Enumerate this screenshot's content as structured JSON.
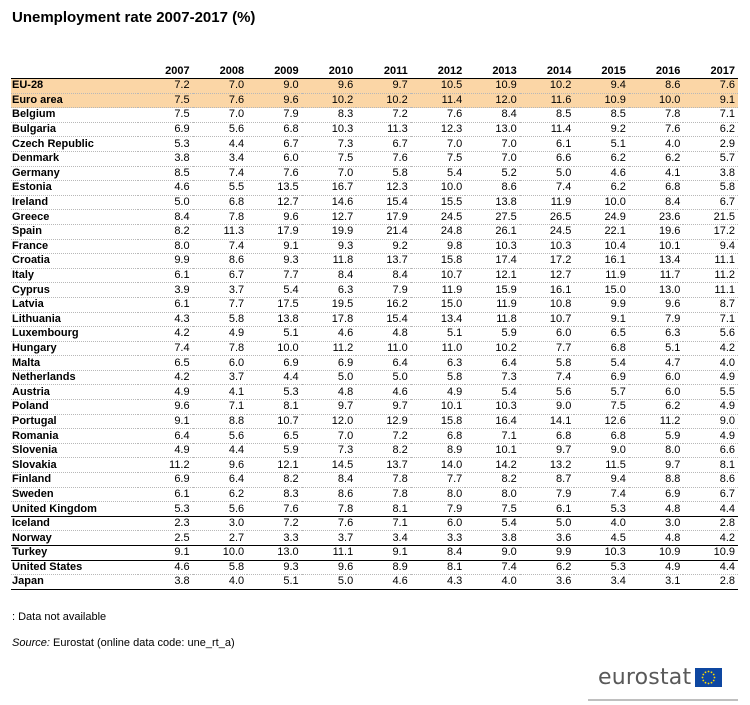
{
  "title": "Unemployment rate 2007-2017 (%)",
  "chart_data": {
    "type": "table",
    "title": "Unemployment rate 2007-2017 (%)",
    "columns": [
      "2007",
      "2008",
      "2009",
      "2010",
      "2011",
      "2012",
      "2013",
      "2014",
      "2015",
      "2016",
      "2017"
    ],
    "rows": [
      {
        "country": "EU-28",
        "values": [
          "7.2",
          "7.0",
          "9.0",
          "9.6",
          "9.7",
          "10.5",
          "10.9",
          "10.2",
          "9.4",
          "8.6",
          "7.6"
        ],
        "highlight": true
      },
      {
        "country": "Euro area",
        "values": [
          "7.5",
          "7.6",
          "9.6",
          "10.2",
          "10.2",
          "11.4",
          "12.0",
          "11.6",
          "10.9",
          "10.0",
          "9.1"
        ],
        "highlight": true
      },
      {
        "country": "Belgium",
        "values": [
          "7.5",
          "7.0",
          "7.9",
          "8.3",
          "7.2",
          "7.6",
          "8.4",
          "8.5",
          "8.5",
          "7.8",
          "7.1"
        ]
      },
      {
        "country": "Bulgaria",
        "values": [
          "6.9",
          "5.6",
          "6.8",
          "10.3",
          "11.3",
          "12.3",
          "13.0",
          "11.4",
          "9.2",
          "7.6",
          "6.2"
        ]
      },
      {
        "country": "Czech Republic",
        "values": [
          "5.3",
          "4.4",
          "6.7",
          "7.3",
          "6.7",
          "7.0",
          "7.0",
          "6.1",
          "5.1",
          "4.0",
          "2.9"
        ]
      },
      {
        "country": "Denmark",
        "values": [
          "3.8",
          "3.4",
          "6.0",
          "7.5",
          "7.6",
          "7.5",
          "7.0",
          "6.6",
          "6.2",
          "6.2",
          "5.7"
        ]
      },
      {
        "country": "Germany",
        "values": [
          "8.5",
          "7.4",
          "7.6",
          "7.0",
          "5.8",
          "5.4",
          "5.2",
          "5.0",
          "4.6",
          "4.1",
          "3.8"
        ]
      },
      {
        "country": "Estonia",
        "values": [
          "4.6",
          "5.5",
          "13.5",
          "16.7",
          "12.3",
          "10.0",
          "8.6",
          "7.4",
          "6.2",
          "6.8",
          "5.8"
        ]
      },
      {
        "country": "Ireland",
        "values": [
          "5.0",
          "6.8",
          "12.7",
          "14.6",
          "15.4",
          "15.5",
          "13.8",
          "11.9",
          "10.0",
          "8.4",
          "6.7"
        ]
      },
      {
        "country": "Greece",
        "values": [
          "8.4",
          "7.8",
          "9.6",
          "12.7",
          "17.9",
          "24.5",
          "27.5",
          "26.5",
          "24.9",
          "23.6",
          "21.5"
        ]
      },
      {
        "country": "Spain",
        "values": [
          "8.2",
          "11.3",
          "17.9",
          "19.9",
          "21.4",
          "24.8",
          "26.1",
          "24.5",
          "22.1",
          "19.6",
          "17.2"
        ]
      },
      {
        "country": "France",
        "values": [
          "8.0",
          "7.4",
          "9.1",
          "9.3",
          "9.2",
          "9.8",
          "10.3",
          "10.3",
          "10.4",
          "10.1",
          "9.4"
        ]
      },
      {
        "country": "Croatia",
        "values": [
          "9.9",
          "8.6",
          "9.3",
          "11.8",
          "13.7",
          "15.8",
          "17.4",
          "17.2",
          "16.1",
          "13.4",
          "11.1"
        ]
      },
      {
        "country": "Italy",
        "values": [
          "6.1",
          "6.7",
          "7.7",
          "8.4",
          "8.4",
          "10.7",
          "12.1",
          "12.7",
          "11.9",
          "11.7",
          "11.2"
        ]
      },
      {
        "country": "Cyprus",
        "values": [
          "3.9",
          "3.7",
          "5.4",
          "6.3",
          "7.9",
          "11.9",
          "15.9",
          "16.1",
          "15.0",
          "13.0",
          "11.1"
        ]
      },
      {
        "country": "Latvia",
        "values": [
          "6.1",
          "7.7",
          "17.5",
          "19.5",
          "16.2",
          "15.0",
          "11.9",
          "10.8",
          "9.9",
          "9.6",
          "8.7"
        ]
      },
      {
        "country": "Lithuania",
        "values": [
          "4.3",
          "5.8",
          "13.8",
          "17.8",
          "15.4",
          "13.4",
          "11.8",
          "10.7",
          "9.1",
          "7.9",
          "7.1"
        ]
      },
      {
        "country": "Luxembourg",
        "values": [
          "4.2",
          "4.9",
          "5.1",
          "4.6",
          "4.8",
          "5.1",
          "5.9",
          "6.0",
          "6.5",
          "6.3",
          "5.6"
        ]
      },
      {
        "country": "Hungary",
        "values": [
          "7.4",
          "7.8",
          "10.0",
          "11.2",
          "11.0",
          "11.0",
          "10.2",
          "7.7",
          "6.8",
          "5.1",
          "4.2"
        ]
      },
      {
        "country": "Malta",
        "values": [
          "6.5",
          "6.0",
          "6.9",
          "6.9",
          "6.4",
          "6.3",
          "6.4",
          "5.8",
          "5.4",
          "4.7",
          "4.0"
        ]
      },
      {
        "country": "Netherlands",
        "values": [
          "4.2",
          "3.7",
          "4.4",
          "5.0",
          "5.0",
          "5.8",
          "7.3",
          "7.4",
          "6.9",
          "6.0",
          "4.9"
        ]
      },
      {
        "country": "Austria",
        "values": [
          "4.9",
          "4.1",
          "5.3",
          "4.8",
          "4.6",
          "4.9",
          "5.4",
          "5.6",
          "5.7",
          "6.0",
          "5.5"
        ]
      },
      {
        "country": "Poland",
        "values": [
          "9.6",
          "7.1",
          "8.1",
          "9.7",
          "9.7",
          "10.1",
          "10.3",
          "9.0",
          "7.5",
          "6.2",
          "4.9"
        ]
      },
      {
        "country": "Portugal",
        "values": [
          "9.1",
          "8.8",
          "10.7",
          "12.0",
          "12.9",
          "15.8",
          "16.4",
          "14.1",
          "12.6",
          "11.2",
          "9.0"
        ]
      },
      {
        "country": "Romania",
        "values": [
          "6.4",
          "5.6",
          "6.5",
          "7.0",
          "7.2",
          "6.8",
          "7.1",
          "6.8",
          "6.8",
          "5.9",
          "4.9"
        ]
      },
      {
        "country": "Slovenia",
        "values": [
          "4.9",
          "4.4",
          "5.9",
          "7.3",
          "8.2",
          "8.9",
          "10.1",
          "9.7",
          "9.0",
          "8.0",
          "6.6"
        ]
      },
      {
        "country": "Slovakia",
        "values": [
          "11.2",
          "9.6",
          "12.1",
          "14.5",
          "13.7",
          "14.0",
          "14.2",
          "13.2",
          "11.5",
          "9.7",
          "8.1"
        ]
      },
      {
        "country": "Finland",
        "values": [
          "6.9",
          "6.4",
          "8.2",
          "8.4",
          "7.8",
          "7.7",
          "8.2",
          "8.7",
          "9.4",
          "8.8",
          "8.6"
        ]
      },
      {
        "country": "Sweden",
        "values": [
          "6.1",
          "6.2",
          "8.3",
          "8.6",
          "7.8",
          "8.0",
          "8.0",
          "7.9",
          "7.4",
          "6.9",
          "6.7"
        ]
      },
      {
        "country": "United Kingdom",
        "values": [
          "5.3",
          "5.6",
          "7.6",
          "7.8",
          "8.1",
          "7.9",
          "7.5",
          "6.1",
          "5.3",
          "4.8",
          "4.4"
        ],
        "separator": true
      },
      {
        "country": "Iceland",
        "values": [
          "2.3",
          "3.0",
          "7.2",
          "7.6",
          "7.1",
          "6.0",
          "5.4",
          "5.0",
          "4.0",
          "3.0",
          "2.8"
        ]
      },
      {
        "country": "Norway",
        "values": [
          "2.5",
          "2.7",
          "3.3",
          "3.7",
          "3.4",
          "3.3",
          "3.8",
          "3.6",
          "4.5",
          "4.8",
          "4.2"
        ],
        "separator": true
      },
      {
        "country": "Turkey",
        "values": [
          "9.1",
          "10.0",
          "13.0",
          "11.1",
          "9.1",
          "8.4",
          "9.0",
          "9.9",
          "10.3",
          "10.9",
          "10.9"
        ],
        "separator": true
      },
      {
        "country": "United States",
        "values": [
          "4.6",
          "5.8",
          "9.3",
          "9.6",
          "8.9",
          "8.1",
          "7.4",
          "6.2",
          "5.3",
          "4.9",
          "4.4"
        ]
      },
      {
        "country": "Japan",
        "values": [
          "3.8",
          "4.0",
          "5.1",
          "5.0",
          "4.6",
          "4.3",
          "4.0",
          "3.6",
          "3.4",
          "3.1",
          "2.8"
        ],
        "last": true
      }
    ]
  },
  "footnote": ": Data not available",
  "source": {
    "label": "Source:",
    "text": "Eurostat (online data code: une_rt_a)"
  },
  "logo": {
    "text": "eurostat",
    "icon": "eu-flag-icon",
    "flag_color": "#0e47a1",
    "star_color": "#ffdd00"
  },
  "highlight_color": "#fbd6a6"
}
